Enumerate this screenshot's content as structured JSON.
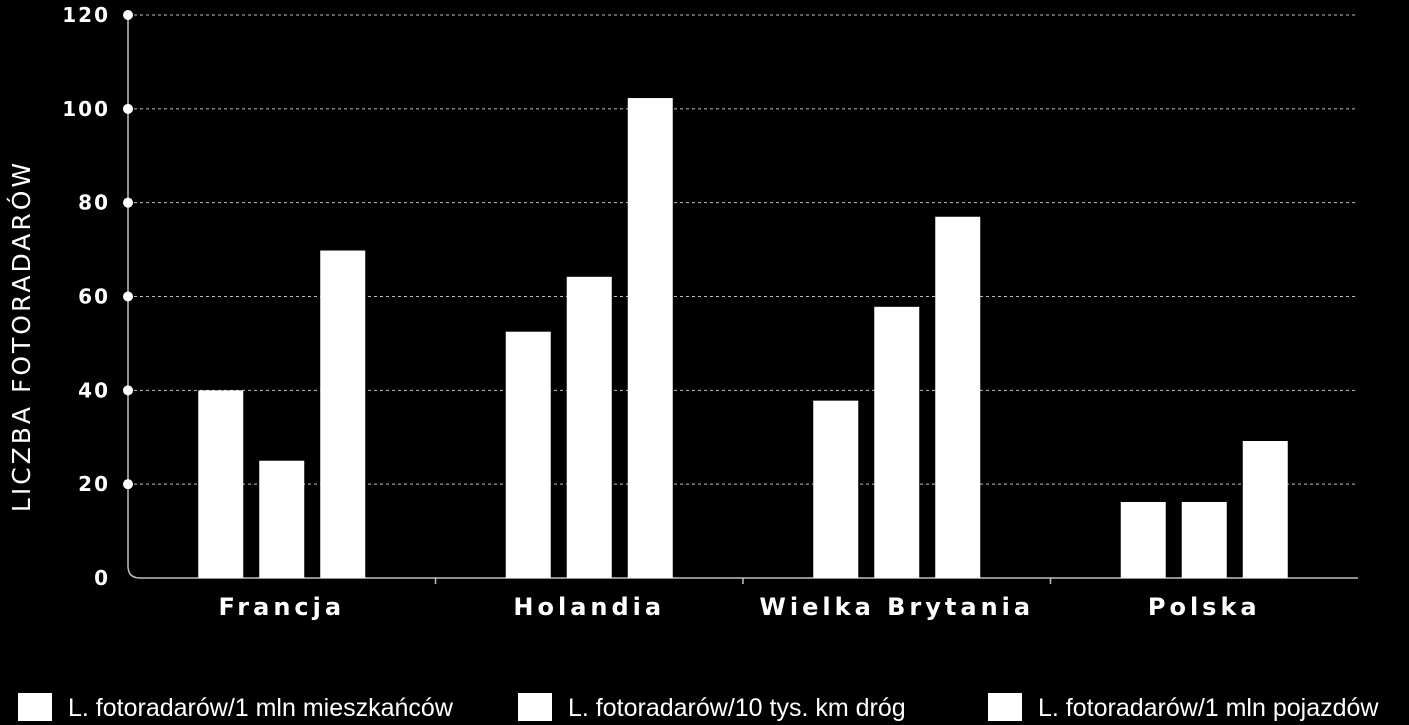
{
  "chart_data": {
    "type": "bar",
    "title": "",
    "ylabel": "LICZBA FOTORADARÓW",
    "xlabel": "",
    "ylim": [
      0,
      120
    ],
    "yticks": [
      0,
      20,
      40,
      60,
      80,
      100,
      120
    ],
    "grid": true,
    "legend_position": "bottom",
    "categories": [
      "Francja",
      "Holandia",
      "Wielka Brytania",
      "Polska"
    ],
    "series": [
      {
        "name": "L. fotoradarów/1 mln mieszkańców",
        "values": [
          40,
          52.5,
          37.8,
          16.2
        ]
      },
      {
        "name": "L. fotoradarów/10 tys. km dróg",
        "values": [
          25,
          64.2,
          57.8,
          16.2
        ]
      },
      {
        "name": "L. fotoradarów/1 mln pojazdów",
        "values": [
          69.8,
          102.3,
          77,
          29.2
        ]
      }
    ]
  },
  "colors": {
    "background": "#000000",
    "bars": "#ffffff",
    "text": "#ffffff",
    "gridline": "#bfbfbf"
  }
}
